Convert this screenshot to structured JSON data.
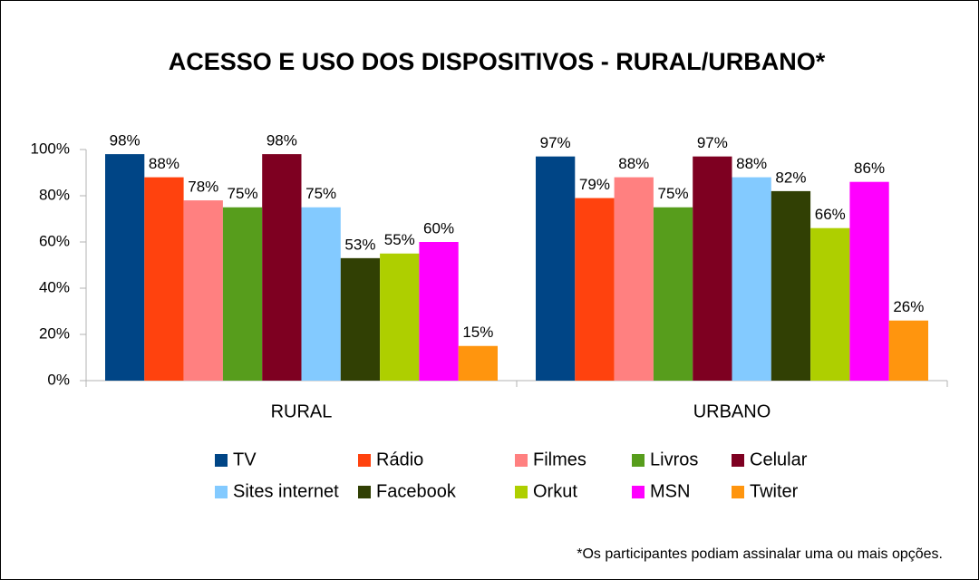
{
  "chart_data": {
    "type": "bar",
    "title": "ACESSO E USO DOS DISPOSITIVOS - RURAL/URBANO*",
    "categories": [
      "RURAL",
      "URBANO"
    ],
    "series": [
      {
        "name": "TV",
        "color": "#004586",
        "values": [
          98,
          97
        ],
        "value_labels": [
          "98%",
          "97%"
        ]
      },
      {
        "name": "Rádio",
        "color": "#ff420e",
        "values": [
          88,
          79
        ],
        "value_labels": [
          "88%",
          "79%"
        ]
      },
      {
        "name": "Filmes",
        "color": "#ff8080",
        "values": [
          78,
          88
        ],
        "value_labels": [
          "78%",
          "88%"
        ]
      },
      {
        "name": "Livros",
        "color": "#579d1c",
        "values": [
          75,
          75
        ],
        "value_labels": [
          "75%",
          "75%"
        ]
      },
      {
        "name": "Celular",
        "color": "#7e0021",
        "values": [
          98,
          97
        ],
        "value_labels": [
          "98%",
          "97%"
        ]
      },
      {
        "name": "Sites internet",
        "color": "#83caff",
        "values": [
          75,
          88
        ],
        "value_labels": [
          "75%",
          "88%"
        ]
      },
      {
        "name": "Facebook",
        "color": "#314004",
        "values": [
          53,
          82
        ],
        "value_labels": [
          "53%",
          "82%"
        ]
      },
      {
        "name": "Orkut",
        "color": "#aecf00",
        "values": [
          55,
          66
        ],
        "value_labels": [
          "55%",
          "66%"
        ]
      },
      {
        "name": "MSN",
        "color": "#ff00ff",
        "values": [
          60,
          86
        ],
        "value_labels": [
          "60%",
          "86%"
        ]
      },
      {
        "name": "Twiter",
        "color": "#ff950e",
        "values": [
          15,
          26
        ],
        "value_labels": [
          "15%",
          "26%"
        ]
      }
    ],
    "ylim": [
      0,
      100
    ],
    "yticks": [
      {
        "value": 0,
        "label": "0%"
      },
      {
        "value": 20,
        "label": "20%"
      },
      {
        "value": 40,
        "label": "40%"
      },
      {
        "value": 60,
        "label": "60%"
      },
      {
        "value": 80,
        "label": "80%"
      },
      {
        "value": 100,
        "label": "100%"
      }
    ],
    "grid": false,
    "legend": "bottom",
    "footnote": "*Os participantes podiam assinalar uma ou mais opções."
  }
}
